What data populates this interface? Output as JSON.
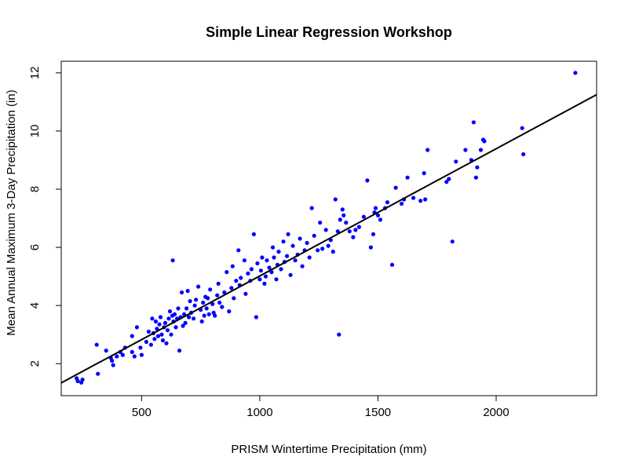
{
  "chart_data": {
    "type": "scatter",
    "title": "Simple Linear Regression Workshop",
    "xlabel": "PRISM Wintertime Precipitation (mm)",
    "ylabel": "Mean Annual Maximum 3-Day Precipitation (in)",
    "xlim": [
      160,
      2425
    ],
    "ylim": [
      0.9,
      12.4
    ],
    "x_ticks": [
      500,
      1000,
      1500,
      2000
    ],
    "x_tick_labels": [
      "500",
      "1000",
      "1500",
      "2000"
    ],
    "y_ticks": [
      2,
      4,
      6,
      8,
      10,
      12
    ],
    "y_tick_labels": [
      "2",
      "4",
      "6",
      "8",
      "10",
      "12"
    ],
    "grid": false,
    "point_color": "#0000ff",
    "line_color": "#000000",
    "regression_line": {
      "x": [
        160,
        2425
      ],
      "y": [
        1.34,
        11.25
      ]
    },
    "series": [
      {
        "points": [
          [
            225,
            1.5
          ],
          [
            230,
            1.4
          ],
          [
            245,
            1.35
          ],
          [
            250,
            1.45
          ],
          [
            310,
            2.65
          ],
          [
            315,
            1.65
          ],
          [
            350,
            2.45
          ],
          [
            370,
            2.2
          ],
          [
            375,
            2.1
          ],
          [
            380,
            1.95
          ],
          [
            395,
            2.25
          ],
          [
            410,
            2.4
          ],
          [
            420,
            2.3
          ],
          [
            430,
            2.55
          ],
          [
            460,
            2.95
          ],
          [
            460,
            2.4
          ],
          [
            470,
            2.25
          ],
          [
            480,
            3.25
          ],
          [
            495,
            2.55
          ],
          [
            500,
            2.3
          ],
          [
            520,
            2.75
          ],
          [
            530,
            3.1
          ],
          [
            540,
            2.65
          ],
          [
            545,
            3.55
          ],
          [
            550,
            3.05
          ],
          [
            555,
            2.85
          ],
          [
            560,
            3.45
          ],
          [
            565,
            3.2
          ],
          [
            570,
            2.95
          ],
          [
            575,
            3.35
          ],
          [
            580,
            3.6
          ],
          [
            585,
            3.0
          ],
          [
            590,
            2.8
          ],
          [
            595,
            3.25
          ],
          [
            600,
            3.4
          ],
          [
            605,
            2.7
          ],
          [
            610,
            3.15
          ],
          [
            615,
            3.55
          ],
          [
            620,
            3.8
          ],
          [
            625,
            3.0
          ],
          [
            630,
            3.65
          ],
          [
            632,
            5.55
          ],
          [
            635,
            3.45
          ],
          [
            640,
            3.7
          ],
          [
            645,
            3.25
          ],
          [
            650,
            3.55
          ],
          [
            655,
            3.9
          ],
          [
            660,
            2.45
          ],
          [
            665,
            3.6
          ],
          [
            670,
            4.45
          ],
          [
            675,
            3.3
          ],
          [
            680,
            3.7
          ],
          [
            685,
            3.4
          ],
          [
            690,
            3.9
          ],
          [
            695,
            4.5
          ],
          [
            700,
            3.6
          ],
          [
            705,
            4.15
          ],
          [
            710,
            3.75
          ],
          [
            720,
            3.55
          ],
          [
            725,
            4.0
          ],
          [
            730,
            4.2
          ],
          [
            740,
            4.65
          ],
          [
            750,
            3.85
          ],
          [
            755,
            3.45
          ],
          [
            760,
            4.1
          ],
          [
            765,
            3.65
          ],
          [
            770,
            4.3
          ],
          [
            775,
            3.9
          ],
          [
            780,
            4.25
          ],
          [
            785,
            3.7
          ],
          [
            790,
            4.55
          ],
          [
            800,
            4.05
          ],
          [
            805,
            3.75
          ],
          [
            810,
            3.65
          ],
          [
            820,
            4.35
          ],
          [
            825,
            4.75
          ],
          [
            830,
            4.1
          ],
          [
            840,
            3.95
          ],
          [
            850,
            4.45
          ],
          [
            860,
            5.15
          ],
          [
            870,
            3.8
          ],
          [
            880,
            4.6
          ],
          [
            885,
            5.35
          ],
          [
            890,
            4.25
          ],
          [
            900,
            4.85
          ],
          [
            910,
            5.9
          ],
          [
            915,
            4.7
          ],
          [
            920,
            4.95
          ],
          [
            935,
            5.55
          ],
          [
            940,
            4.4
          ],
          [
            950,
            5.1
          ],
          [
            960,
            4.85
          ],
          [
            965,
            5.25
          ],
          [
            975,
            6.45
          ],
          [
            985,
            3.6
          ],
          [
            990,
            5.45
          ],
          [
            1000,
            4.9
          ],
          [
            1005,
            5.2
          ],
          [
            1010,
            5.65
          ],
          [
            1020,
            4.75
          ],
          [
            1025,
            5.0
          ],
          [
            1030,
            5.55
          ],
          [
            1040,
            5.3
          ],
          [
            1050,
            5.15
          ],
          [
            1055,
            6.0
          ],
          [
            1060,
            5.65
          ],
          [
            1070,
            4.9
          ],
          [
            1075,
            5.4
          ],
          [
            1080,
            5.85
          ],
          [
            1090,
            5.25
          ],
          [
            1100,
            6.2
          ],
          [
            1105,
            5.5
          ],
          [
            1115,
            5.7
          ],
          [
            1120,
            6.45
          ],
          [
            1130,
            5.05
          ],
          [
            1140,
            6.05
          ],
          [
            1150,
            5.55
          ],
          [
            1160,
            5.75
          ],
          [
            1170,
            6.3
          ],
          [
            1180,
            5.35
          ],
          [
            1190,
            5.9
          ],
          [
            1200,
            6.15
          ],
          [
            1210,
            5.65
          ],
          [
            1220,
            7.35
          ],
          [
            1230,
            6.4
          ],
          [
            1245,
            5.9
          ],
          [
            1255,
            6.85
          ],
          [
            1265,
            5.95
          ],
          [
            1280,
            6.6
          ],
          [
            1290,
            6.05
          ],
          [
            1300,
            6.25
          ],
          [
            1310,
            5.85
          ],
          [
            1320,
            7.65
          ],
          [
            1330,
            6.55
          ],
          [
            1335,
            3.0
          ],
          [
            1340,
            6.95
          ],
          [
            1350,
            7.3
          ],
          [
            1355,
            7.1
          ],
          [
            1365,
            6.85
          ],
          [
            1380,
            6.55
          ],
          [
            1395,
            6.35
          ],
          [
            1405,
            6.6
          ],
          [
            1420,
            6.7
          ],
          [
            1440,
            7.05
          ],
          [
            1455,
            8.3
          ],
          [
            1470,
            6.0
          ],
          [
            1480,
            6.45
          ],
          [
            1485,
            7.2
          ],
          [
            1490,
            7.35
          ],
          [
            1500,
            7.1
          ],
          [
            1510,
            6.95
          ],
          [
            1530,
            7.35
          ],
          [
            1540,
            7.55
          ],
          [
            1560,
            5.4
          ],
          [
            1575,
            8.05
          ],
          [
            1600,
            7.5
          ],
          [
            1610,
            7.65
          ],
          [
            1625,
            8.4
          ],
          [
            1650,
            7.7
          ],
          [
            1680,
            7.6
          ],
          [
            1695,
            8.55
          ],
          [
            1700,
            7.65
          ],
          [
            1710,
            9.35
          ],
          [
            1790,
            8.25
          ],
          [
            1800,
            8.35
          ],
          [
            1815,
            6.2
          ],
          [
            1830,
            8.95
          ],
          [
            1870,
            9.35
          ],
          [
            1895,
            9.0
          ],
          [
            1905,
            10.3
          ],
          [
            1915,
            8.4
          ],
          [
            1920,
            8.75
          ],
          [
            1935,
            9.35
          ],
          [
            1945,
            9.7
          ],
          [
            1950,
            9.65
          ],
          [
            2110,
            10.1
          ],
          [
            2115,
            9.2
          ],
          [
            2335,
            12.0
          ]
        ]
      }
    ]
  }
}
